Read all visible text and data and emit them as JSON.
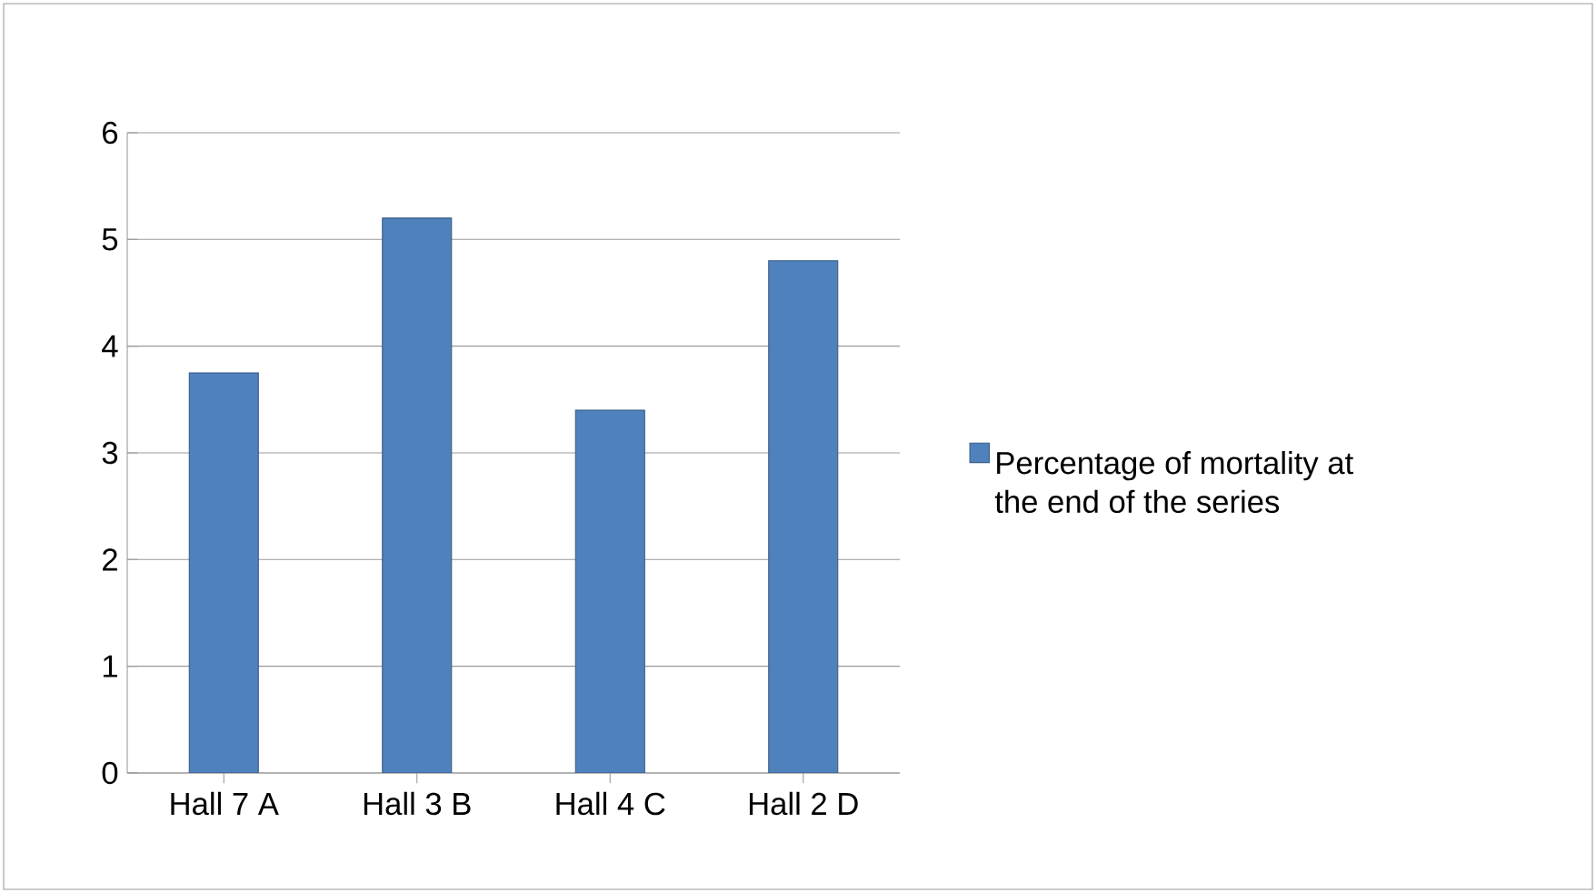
{
  "chart_data": {
    "type": "bar",
    "categories": [
      "Hall 7 A",
      "Hall 3 B",
      "Hall 4 C",
      "Hall 2 D"
    ],
    "series": [
      {
        "name": "Percentage of mortality at the end of the series",
        "color": "#4f81bd",
        "values": [
          3.75,
          5.2,
          3.4,
          4.8
        ]
      }
    ],
    "ylim": [
      0,
      6
    ],
    "yticks": [
      0,
      1,
      2,
      3,
      4,
      5,
      6
    ],
    "grid": "y",
    "legend": "right"
  }
}
